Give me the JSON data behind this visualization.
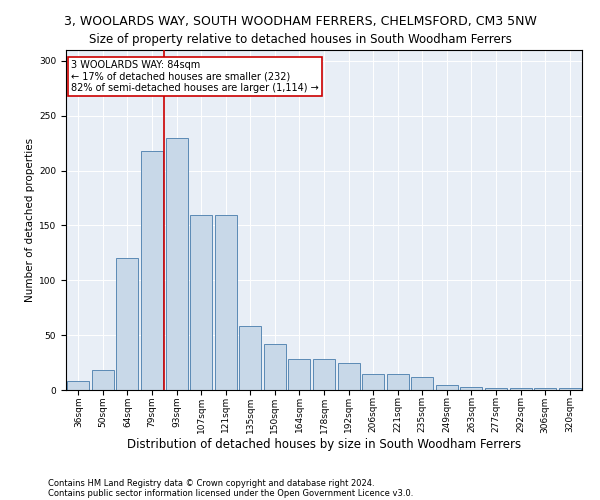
{
  "title": "3, WOOLARDS WAY, SOUTH WOODHAM FERRERS, CHELMSFORD, CM3 5NW",
  "subtitle": "Size of property relative to detached houses in South Woodham Ferrers",
  "xlabel": "Distribution of detached houses by size in South Woodham Ferrers",
  "ylabel": "Number of detached properties",
  "footnote1": "Contains HM Land Registry data © Crown copyright and database right 2024.",
  "footnote2": "Contains public sector information licensed under the Open Government Licence v3.0.",
  "bar_labels": [
    "36sqm",
    "50sqm",
    "64sqm",
    "79sqm",
    "93sqm",
    "107sqm",
    "121sqm",
    "135sqm",
    "150sqm",
    "164sqm",
    "178sqm",
    "192sqm",
    "206sqm",
    "221sqm",
    "235sqm",
    "249sqm",
    "263sqm",
    "277sqm",
    "292sqm",
    "306sqm",
    "320sqm"
  ],
  "bar_values": [
    8,
    18,
    120,
    218,
    230,
    160,
    160,
    58,
    42,
    28,
    28,
    25,
    15,
    15,
    12,
    5,
    3,
    2,
    2,
    2,
    2
  ],
  "bar_color": "#c8d8e8",
  "bar_edge_color": "#5b8ab5",
  "vline_color": "#cc0000",
  "annotation_text": "3 WOOLARDS WAY: 84sqm\n← 17% of detached houses are smaller (232)\n82% of semi-detached houses are larger (1,114) →",
  "annotation_box_color": "#ffffff",
  "annotation_box_edge": "#cc0000",
  "ylim": [
    0,
    310
  ],
  "yticks": [
    0,
    50,
    100,
    150,
    200,
    250,
    300
  ],
  "background_color": "#e8eef6",
  "title_fontsize": 9,
  "subtitle_fontsize": 8.5,
  "xlabel_fontsize": 8.5,
  "ylabel_fontsize": 7.5,
  "tick_fontsize": 6.5,
  "annotation_fontsize": 7,
  "footnote_fontsize": 6
}
